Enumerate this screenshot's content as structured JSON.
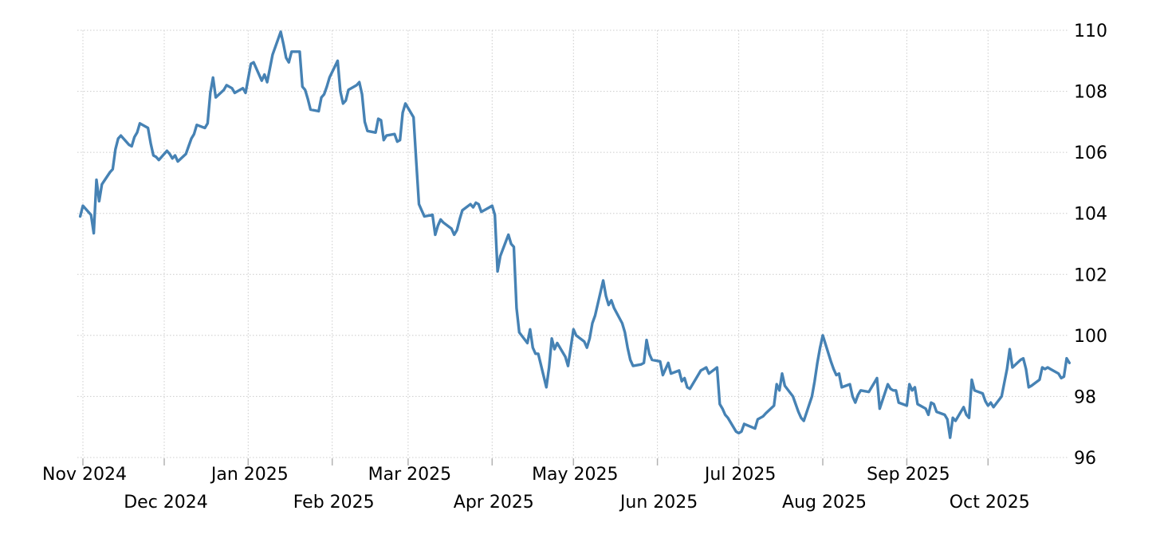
{
  "chart_data": {
    "type": "line",
    "title": "",
    "subtitle": "",
    "xlabel": "",
    "ylabel": "",
    "legend": "none",
    "grid": true,
    "series_name": "index-value",
    "line_color": "#4682b4",
    "grid_color": "#cccccc",
    "tick_color": "#b3b3b3",
    "label_color": "#000000",
    "background_color": "#ffffff",
    "y_axis": {
      "side": "right",
      "ticks": [
        96,
        98,
        100,
        102,
        104,
        106,
        108,
        110
      ],
      "range_min": 95.9,
      "range_max": 110.3
    },
    "x_axis": {
      "start_date": "2024-10-31",
      "end_date": "2025-10-31",
      "months": [
        {
          "label": "Nov 2024",
          "date": "2024-11-01",
          "row": 1
        },
        {
          "label": "Dec 2024",
          "date": "2024-12-01",
          "row": 2
        },
        {
          "label": "Jan 2025",
          "date": "2025-01-01",
          "row": 1
        },
        {
          "label": "Feb 2025",
          "date": "2025-02-01",
          "row": 2
        },
        {
          "label": "Mar 2025",
          "date": "2025-03-01",
          "row": 1
        },
        {
          "label": "Apr 2025",
          "date": "2025-04-01",
          "row": 2
        },
        {
          "label": "May 2025",
          "date": "2025-05-01",
          "row": 1
        },
        {
          "label": "Jun 2025",
          "date": "2025-06-01",
          "row": 2
        },
        {
          "label": "Jul 2025",
          "date": "2025-07-01",
          "row": 1
        },
        {
          "label": "Aug 2025",
          "date": "2025-08-01",
          "row": 2
        },
        {
          "label": "Sep 2025",
          "date": "2025-09-01",
          "row": 1
        },
        {
          "label": "Oct 2025",
          "date": "2025-10-01",
          "row": 2
        }
      ]
    },
    "points": [
      [
        "2024-10-31",
        103.9
      ],
      [
        "2024-11-01",
        104.25
      ],
      [
        "2024-11-04",
        103.95
      ],
      [
        "2024-11-05",
        103.35
      ],
      [
        "2024-11-06",
        105.1
      ],
      [
        "2024-11-07",
        104.4
      ],
      [
        "2024-11-08",
        104.95
      ],
      [
        "2024-11-11",
        105.35
      ],
      [
        "2024-11-12",
        105.45
      ],
      [
        "2024-11-13",
        106.1
      ],
      [
        "2024-11-14",
        106.45
      ],
      [
        "2024-11-15",
        106.55
      ],
      [
        "2024-11-18",
        106.25
      ],
      [
        "2024-11-19",
        106.2
      ],
      [
        "2024-11-20",
        106.5
      ],
      [
        "2024-11-21",
        106.65
      ],
      [
        "2024-11-22",
        106.95
      ],
      [
        "2024-11-25",
        106.8
      ],
      [
        "2024-11-26",
        106.3
      ],
      [
        "2024-11-27",
        105.9
      ],
      [
        "2024-11-28",
        105.85
      ],
      [
        "2024-11-29",
        105.75
      ],
      [
        "2024-12-02",
        106.05
      ],
      [
        "2024-12-03",
        105.95
      ],
      [
        "2024-12-04",
        105.8
      ],
      [
        "2024-12-05",
        105.9
      ],
      [
        "2024-12-06",
        105.7
      ],
      [
        "2024-12-09",
        105.95
      ],
      [
        "2024-12-10",
        106.2
      ],
      [
        "2024-12-11",
        106.45
      ],
      [
        "2024-12-12",
        106.6
      ],
      [
        "2024-12-13",
        106.9
      ],
      [
        "2024-12-16",
        106.8
      ],
      [
        "2024-12-17",
        106.95
      ],
      [
        "2024-12-18",
        107.95
      ],
      [
        "2024-12-19",
        108.45
      ],
      [
        "2024-12-20",
        107.8
      ],
      [
        "2024-12-23",
        108.05
      ],
      [
        "2024-12-24",
        108.2
      ],
      [
        "2024-12-26",
        108.1
      ],
      [
        "2024-12-27",
        107.95
      ],
      [
        "2024-12-30",
        108.1
      ],
      [
        "2024-12-31",
        107.95
      ],
      [
        "2025-01-02",
        108.9
      ],
      [
        "2025-01-03",
        108.95
      ],
      [
        "2025-01-06",
        108.35
      ],
      [
        "2025-01-07",
        108.55
      ],
      [
        "2025-01-08",
        108.3
      ],
      [
        "2025-01-09",
        108.75
      ],
      [
        "2025-01-10",
        109.2
      ],
      [
        "2025-01-13",
        109.95
      ],
      [
        "2025-01-14",
        109.55
      ],
      [
        "2025-01-15",
        109.1
      ],
      [
        "2025-01-16",
        108.95
      ],
      [
        "2025-01-17",
        109.3
      ],
      [
        "2025-01-20",
        109.3
      ],
      [
        "2025-01-21",
        108.15
      ],
      [
        "2025-01-22",
        108.05
      ],
      [
        "2025-01-23",
        107.75
      ],
      [
        "2025-01-24",
        107.4
      ],
      [
        "2025-01-27",
        107.35
      ],
      [
        "2025-01-28",
        107.8
      ],
      [
        "2025-01-29",
        107.9
      ],
      [
        "2025-01-30",
        108.15
      ],
      [
        "2025-01-31",
        108.45
      ],
      [
        "2025-02-03",
        109.0
      ],
      [
        "2025-02-04",
        108.0
      ],
      [
        "2025-02-05",
        107.6
      ],
      [
        "2025-02-06",
        107.7
      ],
      [
        "2025-02-07",
        108.05
      ],
      [
        "2025-02-10",
        108.2
      ],
      [
        "2025-02-11",
        108.3
      ],
      [
        "2025-02-12",
        107.9
      ],
      [
        "2025-02-13",
        107.0
      ],
      [
        "2025-02-14",
        106.7
      ],
      [
        "2025-02-17",
        106.65
      ],
      [
        "2025-02-18",
        107.1
      ],
      [
        "2025-02-19",
        107.05
      ],
      [
        "2025-02-20",
        106.4
      ],
      [
        "2025-02-21",
        106.55
      ],
      [
        "2025-02-24",
        106.6
      ],
      [
        "2025-02-25",
        106.35
      ],
      [
        "2025-02-26",
        106.4
      ],
      [
        "2025-02-27",
        107.3
      ],
      [
        "2025-02-28",
        107.6
      ],
      [
        "2025-03-03",
        107.15
      ],
      [
        "2025-03-04",
        105.7
      ],
      [
        "2025-03-05",
        104.3
      ],
      [
        "2025-03-06",
        104.1
      ],
      [
        "2025-03-07",
        103.9
      ],
      [
        "2025-03-10",
        103.95
      ],
      [
        "2025-03-11",
        103.3
      ],
      [
        "2025-03-12",
        103.6
      ],
      [
        "2025-03-13",
        103.8
      ],
      [
        "2025-03-14",
        103.7
      ],
      [
        "2025-03-17",
        103.5
      ],
      [
        "2025-03-18",
        103.3
      ],
      [
        "2025-03-19",
        103.45
      ],
      [
        "2025-03-20",
        103.8
      ],
      [
        "2025-03-21",
        104.1
      ],
      [
        "2025-03-24",
        104.3
      ],
      [
        "2025-03-25",
        104.2
      ],
      [
        "2025-03-26",
        104.35
      ],
      [
        "2025-03-27",
        104.3
      ],
      [
        "2025-03-28",
        104.05
      ],
      [
        "2025-03-31",
        104.2
      ],
      [
        "2025-04-01",
        104.25
      ],
      [
        "2025-04-02",
        103.95
      ],
      [
        "2025-04-03",
        102.1
      ],
      [
        "2025-04-04",
        102.6
      ],
      [
        "2025-04-07",
        103.3
      ],
      [
        "2025-04-08",
        103.0
      ],
      [
        "2025-04-09",
        102.9
      ],
      [
        "2025-04-10",
        100.9
      ],
      [
        "2025-04-11",
        100.1
      ],
      [
        "2025-04-14",
        99.75
      ],
      [
        "2025-04-15",
        100.2
      ],
      [
        "2025-04-16",
        99.6
      ],
      [
        "2025-04-17",
        99.4
      ],
      [
        "2025-04-18",
        99.4
      ],
      [
        "2025-04-21",
        98.3
      ],
      [
        "2025-04-22",
        98.95
      ],
      [
        "2025-04-23",
        99.9
      ],
      [
        "2025-04-24",
        99.55
      ],
      [
        "2025-04-25",
        99.75
      ],
      [
        "2025-04-28",
        99.3
      ],
      [
        "2025-04-29",
        99.0
      ],
      [
        "2025-04-30",
        99.6
      ],
      [
        "2025-05-01",
        100.2
      ],
      [
        "2025-05-02",
        100.0
      ],
      [
        "2025-05-05",
        99.8
      ],
      [
        "2025-05-06",
        99.6
      ],
      [
        "2025-05-07",
        99.9
      ],
      [
        "2025-05-08",
        100.4
      ],
      [
        "2025-05-09",
        100.65
      ],
      [
        "2025-05-12",
        101.8
      ],
      [
        "2025-05-13",
        101.3
      ],
      [
        "2025-05-14",
        101.0
      ],
      [
        "2025-05-15",
        101.15
      ],
      [
        "2025-05-16",
        100.9
      ],
      [
        "2025-05-19",
        100.4
      ],
      [
        "2025-05-20",
        100.1
      ],
      [
        "2025-05-21",
        99.6
      ],
      [
        "2025-05-22",
        99.2
      ],
      [
        "2025-05-23",
        99.0
      ],
      [
        "2025-05-26",
        99.05
      ],
      [
        "2025-05-27",
        99.1
      ],
      [
        "2025-05-28",
        99.85
      ],
      [
        "2025-05-29",
        99.4
      ],
      [
        "2025-05-30",
        99.2
      ],
      [
        "2025-06-02",
        99.15
      ],
      [
        "2025-06-03",
        98.7
      ],
      [
        "2025-06-04",
        98.9
      ],
      [
        "2025-06-05",
        99.1
      ],
      [
        "2025-06-06",
        98.75
      ],
      [
        "2025-06-09",
        98.85
      ],
      [
        "2025-06-10",
        98.5
      ],
      [
        "2025-06-11",
        98.6
      ],
      [
        "2025-06-12",
        98.3
      ],
      [
        "2025-06-13",
        98.25
      ],
      [
        "2025-06-16",
        98.7
      ],
      [
        "2025-06-17",
        98.85
      ],
      [
        "2025-06-18",
        98.9
      ],
      [
        "2025-06-19",
        98.95
      ],
      [
        "2025-06-20",
        98.75
      ],
      [
        "2025-06-23",
        98.95
      ],
      [
        "2025-06-24",
        97.75
      ],
      [
        "2025-06-25",
        97.6
      ],
      [
        "2025-06-26",
        97.4
      ],
      [
        "2025-06-27",
        97.3
      ],
      [
        "2025-06-30",
        96.85
      ],
      [
        "2025-07-01",
        96.8
      ],
      [
        "2025-07-02",
        96.85
      ],
      [
        "2025-07-03",
        97.1
      ],
      [
        "2025-07-07",
        96.95
      ],
      [
        "2025-07-08",
        97.25
      ],
      [
        "2025-07-09",
        97.3
      ],
      [
        "2025-07-10",
        97.35
      ],
      [
        "2025-07-11",
        97.45
      ],
      [
        "2025-07-14",
        97.7
      ],
      [
        "2025-07-15",
        98.4
      ],
      [
        "2025-07-16",
        98.2
      ],
      [
        "2025-07-17",
        98.75
      ],
      [
        "2025-07-18",
        98.35
      ],
      [
        "2025-07-21",
        98.0
      ],
      [
        "2025-07-22",
        97.75
      ],
      [
        "2025-07-23",
        97.5
      ],
      [
        "2025-07-24",
        97.3
      ],
      [
        "2025-07-25",
        97.2
      ],
      [
        "2025-07-28",
        98.0
      ],
      [
        "2025-07-29",
        98.5
      ],
      [
        "2025-07-30",
        99.1
      ],
      [
        "2025-07-31",
        99.6
      ],
      [
        "2025-08-01",
        100.0
      ],
      [
        "2025-08-04",
        99.15
      ],
      [
        "2025-08-05",
        98.9
      ],
      [
        "2025-08-06",
        98.7
      ],
      [
        "2025-08-07",
        98.75
      ],
      [
        "2025-08-08",
        98.3
      ],
      [
        "2025-08-11",
        98.4
      ],
      [
        "2025-08-12",
        98.0
      ],
      [
        "2025-08-13",
        97.8
      ],
      [
        "2025-08-14",
        98.05
      ],
      [
        "2025-08-15",
        98.2
      ],
      [
        "2025-08-18",
        98.15
      ],
      [
        "2025-08-19",
        98.3
      ],
      [
        "2025-08-20",
        98.45
      ],
      [
        "2025-08-21",
        98.6
      ],
      [
        "2025-08-22",
        97.6
      ],
      [
        "2025-08-25",
        98.4
      ],
      [
        "2025-08-26",
        98.25
      ],
      [
        "2025-08-27",
        98.2
      ],
      [
        "2025-08-28",
        98.2
      ],
      [
        "2025-08-29",
        97.8
      ],
      [
        "2025-09-01",
        97.7
      ],
      [
        "2025-09-02",
        98.4
      ],
      [
        "2025-09-03",
        98.2
      ],
      [
        "2025-09-04",
        98.3
      ],
      [
        "2025-09-05",
        97.75
      ],
      [
        "2025-09-08",
        97.6
      ],
      [
        "2025-09-09",
        97.4
      ],
      [
        "2025-09-10",
        97.8
      ],
      [
        "2025-09-11",
        97.75
      ],
      [
        "2025-09-12",
        97.5
      ],
      [
        "2025-09-15",
        97.4
      ],
      [
        "2025-09-16",
        97.25
      ],
      [
        "2025-09-17",
        96.65
      ],
      [
        "2025-09-18",
        97.3
      ],
      [
        "2025-09-19",
        97.2
      ],
      [
        "2025-09-22",
        97.65
      ],
      [
        "2025-09-23",
        97.4
      ],
      [
        "2025-09-24",
        97.3
      ],
      [
        "2025-09-25",
        98.55
      ],
      [
        "2025-09-26",
        98.2
      ],
      [
        "2025-09-29",
        98.1
      ],
      [
        "2025-09-30",
        97.85
      ],
      [
        "2025-10-01",
        97.7
      ],
      [
        "2025-10-02",
        97.8
      ],
      [
        "2025-10-03",
        97.65
      ],
      [
        "2025-10-06",
        98.0
      ],
      [
        "2025-10-07",
        98.45
      ],
      [
        "2025-10-08",
        98.9
      ],
      [
        "2025-10-09",
        99.55
      ],
      [
        "2025-10-10",
        98.95
      ],
      [
        "2025-10-13",
        99.2
      ],
      [
        "2025-10-14",
        99.25
      ],
      [
        "2025-10-15",
        98.9
      ],
      [
        "2025-10-16",
        98.3
      ],
      [
        "2025-10-17",
        98.35
      ],
      [
        "2025-10-20",
        98.55
      ],
      [
        "2025-10-21",
        98.95
      ],
      [
        "2025-10-22",
        98.9
      ],
      [
        "2025-10-23",
        98.95
      ],
      [
        "2025-10-24",
        98.9
      ],
      [
        "2025-10-27",
        98.75
      ],
      [
        "2025-10-28",
        98.6
      ],
      [
        "2025-10-29",
        98.65
      ],
      [
        "2025-10-30",
        99.25
      ],
      [
        "2025-10-31",
        99.1
      ]
    ]
  }
}
